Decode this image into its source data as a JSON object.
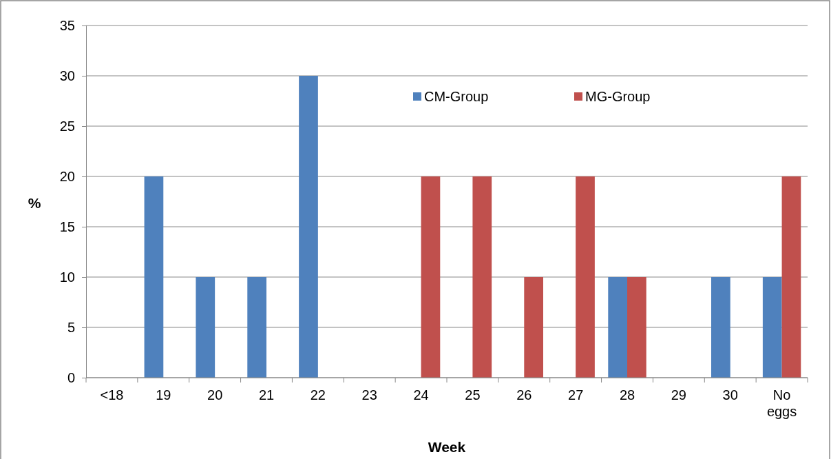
{
  "chart_data": {
    "type": "bar",
    "xlabel": "Week",
    "ylabel": "%",
    "categories": [
      "<18",
      "19",
      "20",
      "21",
      "22",
      "23",
      "24",
      "25",
      "26",
      "27",
      "28",
      "29",
      "30",
      "No eggs"
    ],
    "series": [
      {
        "name": "CM-Group",
        "color": "#4f81bd",
        "values": [
          0,
          20,
          10,
          10,
          30,
          0,
          0,
          0,
          0,
          0,
          10,
          0,
          10,
          10
        ]
      },
      {
        "name": "MG-Group",
        "color": "#c0504d",
        "values": [
          0,
          0,
          0,
          0,
          0,
          0,
          20,
          20,
          10,
          20,
          10,
          0,
          0,
          20
        ]
      }
    ],
    "ylim": [
      0,
      35
    ],
    "yticks": [
      0,
      5,
      10,
      15,
      20,
      25,
      30,
      35
    ],
    "grid": "y",
    "legend": "top right"
  }
}
